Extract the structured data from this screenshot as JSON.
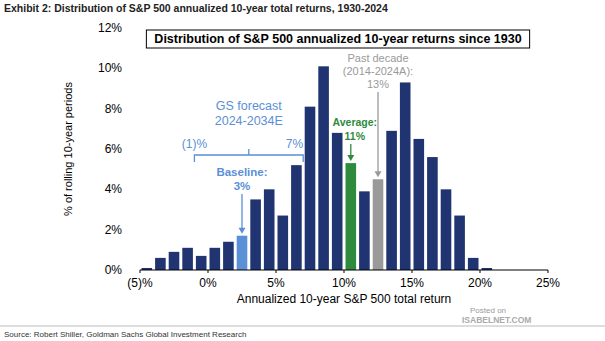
{
  "chart_data": {
    "type": "histogram",
    "header": "Exhibit 2: Distribution of S&P 500 annualized 10-year total returns, 1930-2024",
    "title": "Distribution of S&P 500 annualized 10-year returns since 1930",
    "x_label": "Annualized 10-year S&P 500 total return",
    "y_label": "% of rolling 10-year periods",
    "source": "Source: Robert Shiller, Goldman Sachs Global Investment Research",
    "watermark": [
      "Posted on",
      "ISABELNET.COM"
    ],
    "bins": [
      -5,
      -4,
      -3,
      -2,
      -1,
      0,
      1,
      2,
      3,
      4,
      5,
      6,
      7,
      8,
      9,
      10,
      11,
      12,
      13,
      14,
      15,
      16,
      17,
      18,
      19,
      20,
      21
    ],
    "values": [
      0.1,
      0.6,
      0.9,
      1.1,
      0.7,
      1.1,
      1.4,
      1.7,
      3.5,
      4.0,
      2.7,
      5.2,
      8.1,
      10.1,
      6.8,
      5.3,
      3.9,
      4.5,
      6.9,
      9.3,
      6.5,
      5.6,
      4.0,
      2.7,
      0.6,
      0.1
    ],
    "colors": [
      "#1f3470",
      "#1f3470",
      "#1f3470",
      "#1f3470",
      "#1f3470",
      "#1f3470",
      "#1f3470",
      "#5b8fd6",
      "#1f3470",
      "#1f3470",
      "#1f3470",
      "#1f3470",
      "#1f3470",
      "#1f3470",
      "#1f3470",
      "#2e8b3e",
      "#1f3470",
      "#9a9a9a",
      "#1f3470",
      "#1f3470",
      "#1f3470",
      "#1f3470",
      "#1f3470",
      "#1f3470",
      "#1f3470",
      "#1f3470"
    ],
    "xlim": [
      -5,
      25
    ],
    "xticks": [
      {
        "value": -5,
        "label": "(5)%"
      },
      {
        "value": 0,
        "label": "0%"
      },
      {
        "value": 5,
        "label": "5%"
      },
      {
        "value": 10,
        "label": "10%"
      },
      {
        "value": 15,
        "label": "15%"
      },
      {
        "value": 20,
        "label": "20%"
      },
      {
        "value": 25,
        "label": "25%"
      }
    ],
    "ylim": [
      0,
      12
    ],
    "yticks": [
      {
        "value": 0,
        "label": "0%"
      },
      {
        "value": 2,
        "label": "2%"
      },
      {
        "value": 4,
        "label": "4%"
      },
      {
        "value": 6,
        "label": "6%"
      },
      {
        "value": 8,
        "label": "8%"
      },
      {
        "value": 10,
        "label": "10%"
      },
      {
        "value": 12,
        "label": "12%"
      }
    ],
    "grid": false,
    "annotations": {
      "forecast": {
        "lines": [
          "GS forecast",
          "2024-2034E"
        ],
        "low": -1,
        "low_label": "(1)%",
        "high": 7,
        "high_label": "7%",
        "baseline": 3,
        "baseline_lines": [
          "Baseline:",
          "3%"
        ],
        "color": "#5b8fd6"
      },
      "average": {
        "value": 11,
        "lines": [
          "Average:",
          "11%"
        ],
        "color": "#2e8b3e"
      },
      "past_decade": {
        "value": 13,
        "lines": [
          "Past decade",
          "(2014-2024A):",
          "13%"
        ],
        "color": "#9a9a9a"
      }
    }
  }
}
